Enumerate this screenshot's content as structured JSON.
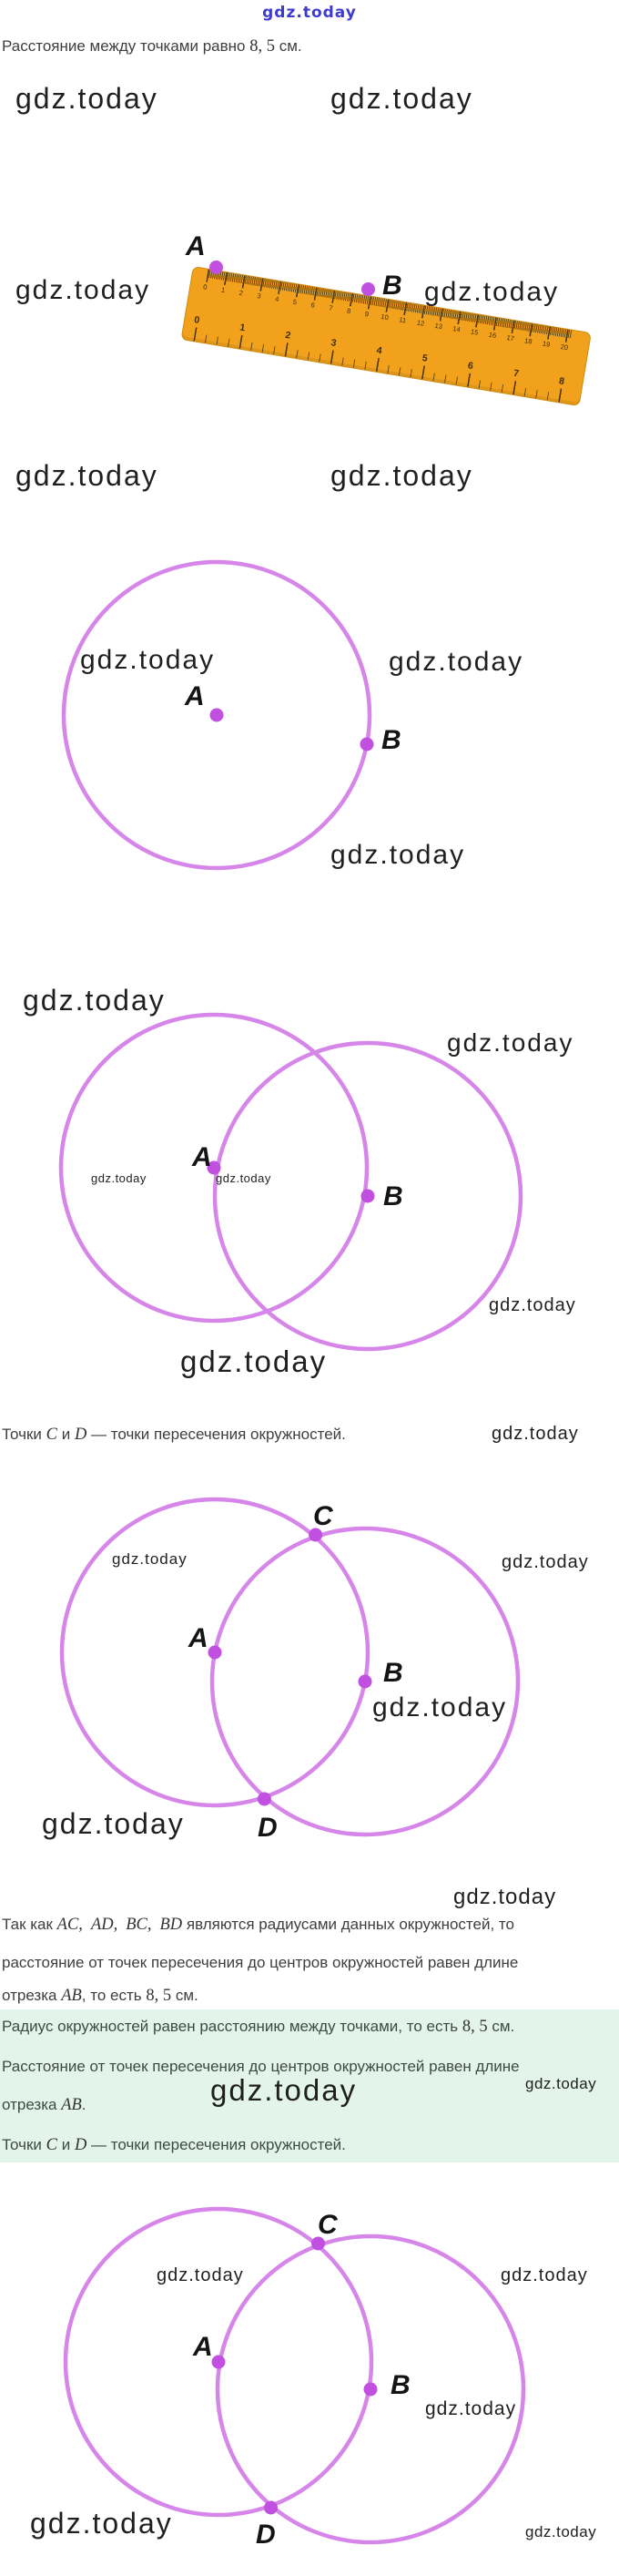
{
  "logo": {
    "text": "gdz.today",
    "color": "#3d3bd0"
  },
  "watermark": {
    "text": "gdz.today"
  },
  "point_labels": {
    "a": "A",
    "b": "B",
    "c": "C",
    "d": "D"
  },
  "colors": {
    "circle_stroke": "#d685e9",
    "dot_fill": "#c14fe0"
  },
  "ruler": {
    "cm_numbers": [
      "0",
      "1",
      "2",
      "3",
      "4",
      "5",
      "6",
      "7",
      "8",
      "9",
      "10",
      "11",
      "12",
      "13",
      "14",
      "15",
      "16",
      "17",
      "18",
      "19",
      "20"
    ],
    "inch_numbers": [
      "0",
      "1",
      "2",
      "3",
      "4",
      "5",
      "6",
      "7",
      "8"
    ]
  },
  "texts": {
    "intro": {
      "pre": "Расстояние между точками равно ",
      "math": "8, 5",
      "post": " см."
    },
    "cd_line": {
      "s1": "Точки ",
      "m1": "C",
      "s2": " и ",
      "m2": "D",
      "s3": " — точки пересечения окружностей."
    },
    "para": {
      "l1": {
        "s1": "Так как ",
        "m1": "AC,",
        "m2": "AD,",
        "m3": "BC,",
        "m4": "BD",
        "s2": " являются радиусами данных окружностей, то"
      },
      "l2": "расстояние от точек пересечения до центров окружностей равен длине",
      "l3": {
        "s1": "отрезка ",
        "m1": "AB",
        "s2": ", то есть ",
        "m2": "8, 5",
        "s3": " см."
      }
    },
    "highlight": {
      "bg": "#e3f5ea",
      "l1": {
        "s1": "Радиус окружностей равен расстоянию между точками, то есть ",
        "m1": "8, 5",
        "s2": " см."
      },
      "l2": "Расстояние от точек пересечения до центров окружностей равен длине",
      "l3": {
        "s1": "отрезка ",
        "m1": "AB",
        "s2": "."
      },
      "l4": {
        "s1": "Точки ",
        "m1": "C",
        "s2": " и ",
        "m2": "D",
        "s3": " — точки пересечения окружностей."
      }
    }
  }
}
